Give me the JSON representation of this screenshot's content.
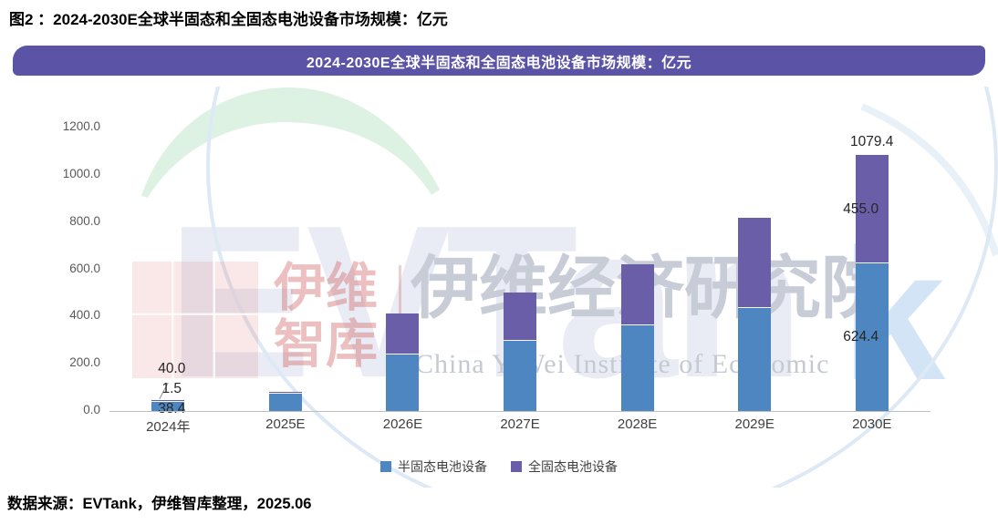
{
  "figure_title": "图2 ：2024-2030E全球半固态和全固态电池设备市场规模：亿元",
  "banner": {
    "title": "2024-2030E全球半固态和全固态电池设备市场规模：亿元",
    "bg_color": "#5b53a5",
    "text_color": "#ffffff"
  },
  "watermark": {
    "brand_text": "EVTan",
    "brand_k": "k",
    "seal_text": "伊维\n智库",
    "cn_institute": "伊维经济研究院",
    "en_institute": "China YiWei Institute of Economic"
  },
  "chart_data": {
    "type": "bar",
    "stacked": true,
    "title": "2024-2030E全球半固态和全固态电池设备市场规模：亿元",
    "unit": "亿元",
    "categories": [
      "2024年",
      "2025E",
      "2026E",
      "2027E",
      "2028E",
      "2029E",
      "2030E"
    ],
    "series": [
      {
        "name": "半固态电池设备",
        "color": "#4e86c1",
        "values": [
          38.4,
          72,
          238,
          298,
          363,
          437,
          624.4
        ]
      },
      {
        "name": "全固态电池设备",
        "color": "#6a5ea8",
        "values": [
          1.5,
          5,
          173,
          198,
          253,
          378,
          455.0
        ]
      }
    ],
    "xlabel": "",
    "ylabel": "",
    "ylim": [
      0,
      1200
    ],
    "ytick_interval": 200,
    "yticks": [
      "1200.0",
      "1000.0",
      "800.0",
      "600.0",
      "400.0",
      "200.0",
      "0.0"
    ],
    "grid": false,
    "legend_position": "bottom",
    "data_labels": {
      "2024年": {
        "total": "40.0",
        "全固态": "1.5",
        "半固态": "38.4"
      },
      "2030E": {
        "total": "1079.4",
        "全固态": "455.0",
        "半固态": "624.4"
      }
    }
  },
  "source_note": "数据来源：EVTank，伊维智库整理，2025.06"
}
